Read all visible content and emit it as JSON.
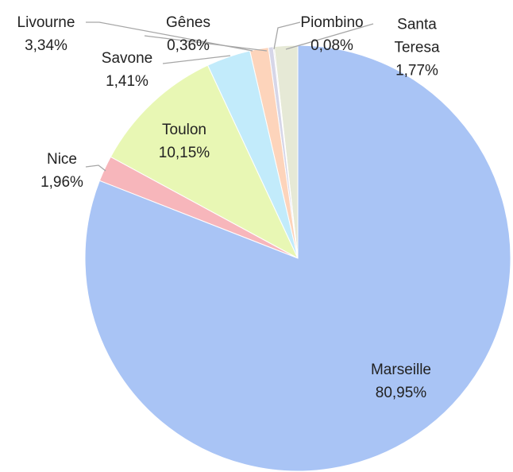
{
  "chart_data": {
    "type": "pie",
    "categories": [
      "Marseille",
      "Nice",
      "Toulon",
      "Livourne",
      "Savone",
      "Gênes",
      "Piombino",
      "Santa Teresa"
    ],
    "values": [
      80.95,
      1.96,
      10.15,
      3.34,
      1.41,
      0.36,
      0.08,
      1.77
    ],
    "value_labels": [
      "80,95%",
      "1,96%",
      "10,15%",
      "3,34%",
      "1,41%",
      "0,36%",
      "0,08%",
      "1,77%"
    ],
    "colors": [
      "#a9c4f5",
      "#f7b6bb",
      "#e8f7b4",
      "#c2ebfb",
      "#fdd4bb",
      "#d6d6e8",
      "#d6d6d6",
      "#e6e9d6"
    ]
  }
}
